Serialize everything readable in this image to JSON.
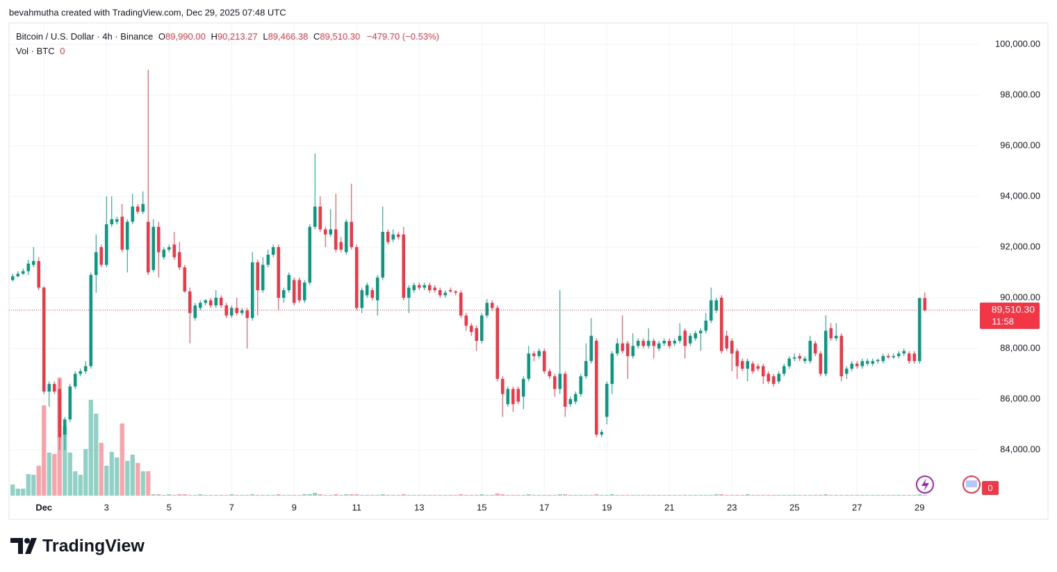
{
  "attribution": "bevahmutha created with TradingView.com, Dec 29, 2025 07:48 UTC",
  "brand": "TradingView",
  "badge_count": "0",
  "chart_data": {
    "type": "candlestick",
    "legend": {
      "symbol": "Bitcoin / U.S. Dollar · 4h · Binance",
      "o_key": "O",
      "open": "89,990.00",
      "h_key": "H",
      "high": "90,213.27",
      "l_key": "L",
      "low": "89,466.38",
      "c_key": "C",
      "close": "89,510.30",
      "change": "−479.70 (−0.53%)",
      "vol_label": "Vol · BTC",
      "vol_value": "0"
    },
    "last_price_label": "89,510.30",
    "countdown": "11:58",
    "up_color": "#089981",
    "down_color": "#f23645",
    "grid": true,
    "xlim": [
      -0.7,
      185.3
    ],
    "xticks": [
      {
        "value": 6,
        "label": "Dec"
      },
      {
        "value": 18,
        "label": "3"
      },
      {
        "value": 30,
        "label": "5"
      },
      {
        "value": 42,
        "label": "7"
      },
      {
        "value": 54,
        "label": "9"
      },
      {
        "value": 66,
        "label": "11"
      },
      {
        "value": 78,
        "label": "13"
      },
      {
        "value": 90,
        "label": "15"
      },
      {
        "value": 102,
        "label": "17"
      },
      {
        "value": 114,
        "label": "19"
      },
      {
        "value": 126,
        "label": "21"
      },
      {
        "value": 138,
        "label": "23"
      },
      {
        "value": 150,
        "label": "25"
      },
      {
        "value": 162,
        "label": "27"
      },
      {
        "value": 174,
        "label": "29"
      }
    ],
    "ylim": [
      82190,
      100850
    ],
    "yticks": [
      {
        "value": 84000,
        "label": "84,000.00"
      },
      {
        "value": 86000,
        "label": "86,000.00"
      },
      {
        "value": 88000,
        "label": "88,000.00"
      },
      {
        "value": 90000,
        "label": "90,000.00"
      },
      {
        "value": 92000,
        "label": "92,000.00"
      },
      {
        "value": 94000,
        "label": "94,000.00"
      },
      {
        "value": 96000,
        "label": "96,000.00"
      },
      {
        "value": 98000,
        "label": "98,000.00"
      },
      {
        "value": 100000,
        "label": "100,000.00"
      }
    ],
    "vol_ylim": [
      0,
      200
    ],
    "open": [
      90700,
      90850,
      90950,
      91050,
      91300,
      91450,
      90400,
      86300,
      86600,
      86400,
      84600,
      85200,
      86500,
      87000,
      87100,
      87300,
      90900,
      92000,
      91300,
      92900,
      93000,
      93200,
      91900,
      93000,
      93600,
      93400,
      93000,
      91100,
      92800,
      91600,
      91900,
      92100,
      91800,
      91200,
      90250,
      89200,
      89600,
      89800,
      89900,
      89700,
      90000,
      89700,
      89300,
      89600,
      89400,
      89500,
      89200,
      91400,
      90300,
      91300,
      91700,
      92000,
      90000,
      90300,
      90700,
      90700,
      89900,
      90600,
      92800,
      93600,
      92700,
      92500,
      92700,
      92200,
      91800,
      93000,
      92000,
      89600,
      90100,
      90300,
      89900,
      90800,
      92600,
      92300,
      92500,
      92500,
      90000,
      90300,
      90500,
      90400,
      90500,
      90400,
      90300,
      90100,
      90300,
      90250,
      90200,
      89300,
      88900,
      88800,
      88300,
      89300,
      89800,
      89600,
      86800,
      85800,
      86400,
      86400,
      86100,
      86800,
      87800,
      87700,
      87900,
      87100,
      86900,
      86400,
      87000,
      85800,
      85900,
      86200,
      86900,
      87500,
      88300,
      84600,
      85300,
      86600,
      87800,
      88200,
      88200,
      87700,
      88100,
      88300,
      88100,
      88300,
      88000,
      88200,
      88300,
      88200,
      88300,
      88700,
      88200,
      88400,
      88600,
      88700,
      89100,
      89500,
      90000,
      88500,
      88300,
      87900,
      87500,
      87200,
      87400,
      87300,
      87300,
      87000,
      86900,
      86700,
      87000,
      87300,
      87600,
      87700,
      87500,
      87500,
      88200,
      87800,
      87000,
      88800,
      88400,
      88500,
      87000,
      87200,
      87400,
      87300,
      87400,
      87400,
      87500,
      87500,
      87700,
      87650,
      87700,
      87800,
      87800,
      87800,
      87500,
      89990
    ],
    "high": [
      90950,
      91050,
      91150,
      91500,
      92000,
      91600,
      90450,
      86700,
      86700,
      86800,
      85300,
      86600,
      87100,
      87200,
      87500,
      91000,
      92500,
      92100,
      94000,
      94000,
      93200,
      93700,
      93100,
      94100,
      93700,
      94200,
      99000,
      93100,
      93000,
      92000,
      92100,
      92600,
      92200,
      91300,
      90400,
      89800,
      89900,
      89950,
      90000,
      90300,
      90100,
      89800,
      89700,
      90000,
      89600,
      89600,
      91800,
      91500,
      91600,
      91900,
      92100,
      92100,
      90400,
      91000,
      90800,
      90800,
      90700,
      92900,
      95700,
      94000,
      92800,
      93500,
      94100,
      92400,
      93100,
      94500,
      92100,
      90400,
      90600,
      90400,
      90900,
      93600,
      92700,
      92700,
      92600,
      92800,
      90500,
      90600,
      90600,
      90600,
      90600,
      90500,
      90400,
      90300,
      90400,
      90300,
      90300,
      89400,
      89000,
      88900,
      89400,
      89950,
      89900,
      89700,
      86900,
      86500,
      86500,
      86500,
      86900,
      88100,
      87900,
      88000,
      88000,
      87200,
      87000,
      90300,
      87100,
      86100,
      86300,
      87000,
      88200,
      89200,
      88400,
      84800,
      86700,
      87900,
      88400,
      89300,
      88300,
      88600,
      88400,
      88400,
      88800,
      88400,
      88300,
      88400,
      88400,
      88400,
      89000,
      88800,
      88600,
      88700,
      88800,
      89400,
      90400,
      90000,
      90100,
      88700,
      88400,
      88000,
      87600,
      87600,
      87500,
      87400,
      87400,
      87100,
      87000,
      87100,
      87400,
      87700,
      87800,
      87800,
      87700,
      88500,
      88300,
      87900,
      89300,
      89000,
      89000,
      88600,
      87300,
      87500,
      87500,
      87600,
      87600,
      87600,
      87600,
      87800,
      87800,
      87800,
      87900,
      88000,
      87900,
      87900,
      90000,
      90213.27
    ],
    "low": [
      90650,
      90800,
      90900,
      90900,
      91200,
      90300,
      86200,
      85700,
      86200,
      84000,
      84000,
      85100,
      86400,
      86900,
      87000,
      87200,
      90200,
      91200,
      91200,
      92800,
      92900,
      91800,
      91000,
      92900,
      93300,
      93300,
      90900,
      91000,
      90800,
      91500,
      91800,
      91500,
      91100,
      90200,
      88200,
      89100,
      89500,
      89700,
      89600,
      89600,
      89600,
      89200,
      89200,
      89300,
      89300,
      88000,
      89100,
      89300,
      90200,
      91200,
      91600,
      89500,
      89800,
      90200,
      89700,
      89800,
      89800,
      90500,
      92700,
      92600,
      92000,
      92400,
      91800,
      91800,
      91700,
      91900,
      89500,
      89400,
      90000,
      89900,
      89300,
      90700,
      92100,
      92200,
      92300,
      89900,
      89400,
      90200,
      90300,
      90300,
      90200,
      90200,
      90000,
      90000,
      90200,
      90100,
      89200,
      88700,
      88500,
      87900,
      88200,
      89200,
      89500,
      86700,
      85300,
      85700,
      85500,
      85800,
      85600,
      86700,
      87500,
      87600,
      87000,
      86800,
      86100,
      86200,
      85300,
      85700,
      85800,
      86100,
      86800,
      87400,
      84500,
      84500,
      85000,
      86200,
      87700,
      87800,
      86800,
      87600,
      88000,
      88000,
      88000,
      87600,
      87900,
      88100,
      88000,
      88100,
      88200,
      87600,
      88100,
      88300,
      87900,
      88600,
      89000,
      89400,
      87800,
      87900,
      87100,
      86800,
      87100,
      86700,
      87000,
      87100,
      86600,
      86600,
      86500,
      86600,
      86900,
      87200,
      87500,
      87500,
      87400,
      87400,
      87700,
      86900,
      86900,
      88300,
      88300,
      86700,
      86800,
      87100,
      87200,
      87200,
      87300,
      87300,
      87400,
      87400,
      87600,
      87600,
      87600,
      87700,
      87400,
      87400,
      87400,
      89466.38
    ],
    "close": [
      90850,
      90950,
      91050,
      91350,
      91450,
      90400,
      86300,
      86600,
      86300,
      84500,
      85200,
      86500,
      87000,
      87100,
      87300,
      90900,
      91800,
      91300,
      92900,
      93100,
      93100,
      91900,
      93000,
      93600,
      93400,
      93700,
      91000,
      92800,
      91800,
      91900,
      92000,
      91600,
      91200,
      90250,
      89400,
      89700,
      89800,
      89900,
      89700,
      90000,
      89700,
      89300,
      89600,
      89400,
      89500,
      89200,
      91400,
      90300,
      91300,
      91700,
      92000,
      90000,
      90300,
      90900,
      89800,
      89900,
      90600,
      92800,
      93600,
      92700,
      92500,
      92700,
      91900,
      91900,
      93000,
      92000,
      89600,
      90300,
      90500,
      90000,
      90800,
      92600,
      92200,
      92500,
      92400,
      90000,
      90400,
      90500,
      90400,
      90500,
      90300,
      90300,
      90100,
      90200,
      90250,
      90200,
      89300,
      88900,
      88650,
      88300,
      89300,
      89800,
      89600,
      86800,
      86200,
      86400,
      85800,
      85900,
      86800,
      87800,
      87700,
      87900,
      87100,
      86900,
      86400,
      87000,
      85700,
      86000,
      86200,
      86900,
      87500,
      88500,
      84600,
      84700,
      86600,
      87800,
      88200,
      87900,
      87700,
      88100,
      88300,
      88100,
      88300,
      88100,
      88200,
      88300,
      88100,
      88300,
      88500,
      88100,
      88500,
      88600,
      88700,
      89100,
      89900,
      89900,
      87900,
      88000,
      87800,
      87300,
      87200,
      87500,
      87100,
      87200,
      86900,
      86700,
      86600,
      87000,
      87300,
      87600,
      87650,
      87600,
      87600,
      88300,
      87800,
      87000,
      88700,
      88400,
      88500,
      86900,
      87200,
      87400,
      87300,
      87500,
      87500,
      87500,
      87550,
      87700,
      87650,
      87700,
      87800,
      87900,
      87500,
      87500,
      89990,
      89510.3
    ],
    "volume": [
      16,
      10,
      10,
      31,
      30,
      43,
      130,
      62,
      60,
      170,
      100,
      62,
      35,
      30,
      67,
      138,
      118,
      76,
      43,
      63,
      55,
      104,
      50,
      59,
      47,
      35,
      35,
      2,
      2,
      1,
      2,
      1,
      2,
      2,
      1,
      1,
      2,
      1,
      1,
      1,
      1,
      1,
      2,
      1,
      1,
      1,
      2,
      1,
      1,
      1,
      1,
      2,
      1,
      1,
      1,
      1,
      2,
      2,
      4,
      2,
      1,
      1,
      2,
      1,
      2,
      2,
      2,
      1,
      1,
      1,
      1,
      2,
      1,
      1,
      1,
      2,
      1,
      1,
      1,
      1,
      1,
      1,
      1,
      1,
      1,
      1,
      2,
      1,
      1,
      1,
      2,
      1,
      1,
      3,
      2,
      1,
      1,
      1,
      1,
      2,
      1,
      1,
      1,
      1,
      1,
      2,
      2,
      1,
      1,
      1,
      1,
      1,
      2,
      1,
      1,
      2,
      1,
      1,
      1,
      1,
      1,
      1,
      1,
      1,
      1,
      1,
      1,
      1,
      1,
      1,
      1,
      1,
      1,
      1,
      1,
      2,
      2,
      1,
      1,
      1,
      1,
      2,
      1,
      1,
      1,
      1,
      1,
      1,
      1,
      1,
      1,
      1,
      1,
      1,
      1,
      1,
      2,
      1,
      1,
      1,
      1,
      1,
      1,
      1,
      1,
      1,
      1,
      1,
      1,
      1,
      1,
      1,
      1,
      1,
      2,
      1
    ]
  }
}
